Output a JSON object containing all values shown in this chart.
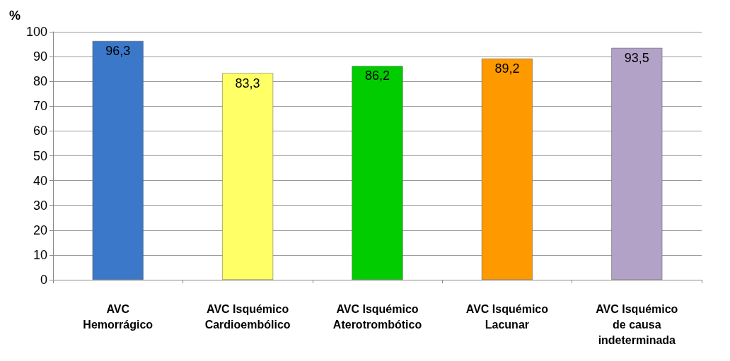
{
  "chart_data": {
    "type": "bar",
    "ylabel": "%",
    "categories": [
      "AVC Hemorrágico",
      "AVC Isquémico Cardioembólico",
      "AVC Isquémico Aterotrombótico",
      "AVC Isquémico Lacunar",
      "AVC Isquémico de causa indeterminada"
    ],
    "values": [
      96.3,
      83.3,
      86.2,
      89.2,
      93.5
    ],
    "colors": [
      "#3b78c9",
      "#ffff66",
      "#00cc00",
      "#ff9900",
      "#b3a2c7"
    ],
    "value_labels": [
      "96,3",
      "83,3",
      "86,2",
      "89,2",
      "93,5"
    ],
    "ylim": [
      0,
      100
    ],
    "yticks": [
      0,
      10,
      20,
      30,
      40,
      50,
      60,
      70,
      80,
      90,
      100
    ],
    "grid": "y"
  }
}
